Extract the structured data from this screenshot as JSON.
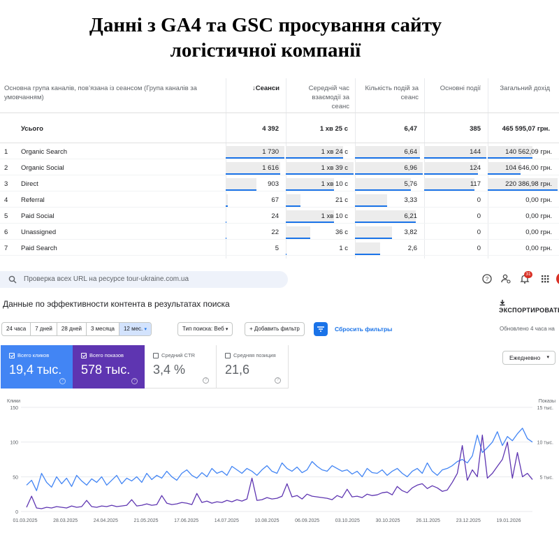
{
  "heading": {
    "line1": "Данні з GA4 та GSC просування сайту",
    "line2": "логістичної компанії"
  },
  "ga4": {
    "headers": {
      "group": "Основна група каналів, пов’язана із сеансом (Група каналів за умовчанням)",
      "sessions": "Сеанси",
      "engagement": "Середній час взаємодії за сеанс",
      "events": "Кількість подій за сеанс",
      "key_events": "Основні події",
      "revenue": "Загальний дохід"
    },
    "total": {
      "label": "Усього",
      "sessions": "4 392",
      "engagement": "1 хв 25 с",
      "events": "6,47",
      "key_events": "385",
      "revenue": "465 595,07 грн."
    },
    "rows": [
      {
        "idx": "1",
        "name": "Organic Search",
        "sessions": "1 730",
        "engagement": "1 хв 24 с",
        "events": "6,64",
        "key_events": "144",
        "revenue": "140 562,09 грн.",
        "s": 1730,
        "e": 84,
        "ev": 6.64,
        "k": 144,
        "r": 140562.09
      },
      {
        "idx": "2",
        "name": "Organic Social",
        "sessions": "1 616",
        "engagement": "1 хв 39 с",
        "events": "6,96",
        "key_events": "124",
        "revenue": "104 646,00 грн.",
        "s": 1616,
        "e": 99,
        "ev": 6.96,
        "k": 124,
        "r": 104646
      },
      {
        "idx": "3",
        "name": "Direct",
        "sessions": "903",
        "engagement": "1 хв 10 с",
        "events": "5,76",
        "key_events": "117",
        "revenue": "220 386,98 грн.",
        "s": 903,
        "e": 70,
        "ev": 5.76,
        "k": 117,
        "r": 220386.98
      },
      {
        "idx": "4",
        "name": "Referral",
        "sessions": "67",
        "engagement": "21 с",
        "events": "3,33",
        "key_events": "0",
        "revenue": "0,00 грн.",
        "s": 67,
        "e": 21,
        "ev": 3.33,
        "k": 0,
        "r": 0
      },
      {
        "idx": "5",
        "name": "Paid Social",
        "sessions": "24",
        "engagement": "1 хв 10 с",
        "events": "6,21",
        "key_events": "0",
        "revenue": "0,00 грн.",
        "s": 24,
        "e": 70,
        "ev": 6.21,
        "k": 0,
        "r": 0
      },
      {
        "idx": "6",
        "name": "Unassigned",
        "sessions": "22",
        "engagement": "36 с",
        "events": "3,82",
        "key_events": "0",
        "revenue": "0,00 грн.",
        "s": 22,
        "e": 36,
        "ev": 3.82,
        "k": 0,
        "r": 0
      },
      {
        "idx": "7",
        "name": "Paid Search",
        "sessions": "5",
        "engagement": "1 с",
        "events": "2,6",
        "key_events": "0",
        "revenue": "0,00 грн.",
        "s": 5,
        "e": 1,
        "ev": 2.6,
        "k": 0,
        "r": 0
      }
    ]
  },
  "gsc": {
    "search_placeholder": "Проверка всех URL на ресурсе tour-ukraine.com.ua",
    "notification_count": "31",
    "title": "Данные по эффективности контента в результатах поиска",
    "export_label": "ЭКСПОРТИРОВАТЬ",
    "date_ranges": [
      "24 часа",
      "7 дней",
      "28 дней",
      "3 месяца",
      "12 мес."
    ],
    "date_active": "12 мес.",
    "search_type": "Тип поиска: Веб",
    "add_filter": "Добавить фильтр",
    "reset_filters": "Сбросить фильтры",
    "updated": "Обновлено 4 часа на",
    "metrics": {
      "clicks": {
        "label": "Всего кликов",
        "value": "19,4 тыс."
      },
      "impressions": {
        "label": "Всего показов",
        "value": "578 тыс."
      },
      "ctr": {
        "label": "Средний CTR",
        "value": "3,4 %"
      },
      "position": {
        "label": "Средняя позиция",
        "value": "21,6"
      }
    },
    "granularity": "Ежедневно",
    "colors": {
      "clicks": "#4285f4",
      "impressions": "#5e35b1",
      "accent": "#1a73e8"
    },
    "icons": [
      "search-icon",
      "help-icon",
      "manage-accounts-icon",
      "notifications-icon",
      "apps-icon",
      "download-icon",
      "filter-icon"
    ]
  },
  "chart_data": {
    "type": "line",
    "ylabel_left": "Клики",
    "ylabel_right": "Показы",
    "y_left_ticks": [
      "150",
      "100",
      "50",
      "0"
    ],
    "y_right_ticks": [
      "15 тыс.",
      "10 тыс.",
      "5 тыс."
    ],
    "ylim_left": [
      0,
      150
    ],
    "ylim_right": [
      0,
      15000
    ],
    "x_ticks": [
      "01.03.2025",
      "28.03.2025",
      "24.04.2025",
      "21.05.2025",
      "17.06.2025",
      "14.07.2025",
      "10.08.2025",
      "06.09.2025",
      "03.10.2025",
      "30.10.2025",
      "26.11.2025",
      "23.12.2025",
      "19.01.2026"
    ],
    "series": [
      {
        "name": "Всего кликов",
        "axis": "left",
        "values": [
          38,
          45,
          30,
          55,
          42,
          35,
          50,
          40,
          48,
          36,
          52,
          44,
          38,
          47,
          42,
          50,
          38,
          45,
          52,
          40,
          48,
          44,
          50,
          42,
          55,
          46,
          52,
          48,
          58,
          50,
          45,
          55,
          60,
          52,
          48,
          56,
          50,
          62,
          55,
          58,
          52,
          65,
          60,
          55,
          62,
          58,
          52,
          60,
          66,
          58,
          55,
          70,
          62,
          58,
          64,
          56,
          60,
          72,
          65,
          60,
          58,
          66,
          62,
          58,
          60,
          54,
          58,
          50,
          62,
          56,
          55,
          60,
          52,
          58,
          62,
          55,
          50,
          58,
          62,
          55,
          70,
          58,
          52,
          60,
          62,
          66,
          72,
          75,
          70,
          80,
          110,
          85,
          92,
          100,
          115,
          95,
          108,
          102,
          112,
          120,
          105,
          100
        ]
      },
      {
        "name": "Всего показов",
        "axis": "right",
        "values": [
          600,
          2200,
          500,
          400,
          600,
          500,
          700,
          600,
          500,
          800,
          600,
          700,
          1600,
          700,
          600,
          800,
          700,
          900,
          700,
          800,
          900,
          1700,
          800,
          900,
          1100,
          900,
          1000,
          2300,
          1200,
          1000,
          1100,
          1300,
          1200,
          1000,
          2600,
          1300,
          1500,
          1200,
          1400,
          1300,
          1600,
          1400,
          1700,
          1500,
          1800,
          4800,
          1600,
          1700,
          2000,
          1800,
          1900,
          2200,
          4000,
          2100,
          2300,
          1800,
          2500,
          2200,
          2100,
          2000,
          1900,
          1700,
          2300,
          2000,
          3200,
          2100,
          2200,
          2000,
          2500,
          2300,
          2400,
          2700,
          2800,
          2400,
          3600,
          3000,
          2700,
          3400,
          3800,
          4000,
          3300,
          3700,
          3400,
          2900,
          3100,
          4200,
          5500,
          9500,
          4500,
          6000,
          5000,
          11000,
          4800,
          5500,
          6500,
          7500,
          10000,
          4800,
          8500,
          5000,
          5500,
          4600
        ]
      }
    ]
  }
}
